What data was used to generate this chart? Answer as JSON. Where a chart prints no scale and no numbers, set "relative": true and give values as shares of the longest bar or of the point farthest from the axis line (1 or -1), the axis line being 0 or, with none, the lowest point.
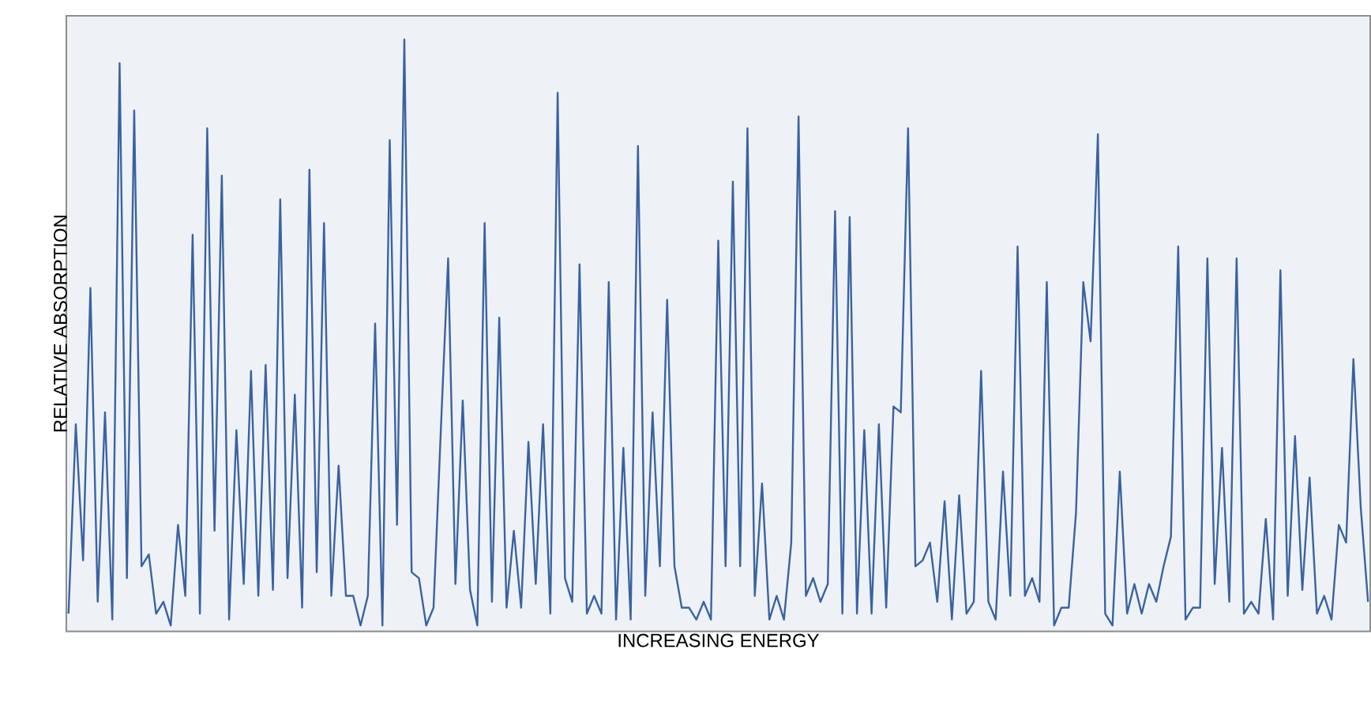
{
  "chart_data": {
    "type": "line",
    "xlabel": "INCREASING ENERGY",
    "ylabel": "RELATIVE ABSORPTION",
    "relative": true,
    "color": "#3b62a0",
    "categories": [
      null,
      null,
      null,
      null,
      null,
      null,
      null,
      null,
      null,
      null,
      null,
      null,
      null,
      null,
      null,
      null,
      null,
      null,
      null,
      null,
      null,
      null,
      null,
      null,
      null,
      null,
      null,
      null,
      null,
      null,
      null,
      null,
      null,
      null,
      null,
      null,
      null,
      null,
      null,
      null,
      null,
      null,
      null,
      null,
      null,
      null,
      null,
      null,
      null,
      null,
      null,
      null,
      null,
      null,
      null,
      null,
      null,
      null,
      null,
      null,
      null,
      null,
      null,
      null,
      null,
      null,
      null,
      null,
      null,
      null,
      null,
      null,
      null,
      null,
      null,
      null,
      null,
      null,
      null,
      null,
      null,
      null,
      null,
      null,
      null,
      null,
      null,
      null,
      null,
      null,
      null,
      null,
      null,
      null,
      null,
      null,
      null,
      null,
      null,
      null,
      null,
      null,
      null,
      null,
      null,
      null,
      null,
      null,
      null,
      null,
      null,
      null,
      null,
      null,
      null,
      null,
      null,
      null,
      null,
      null,
      null,
      null,
      null,
      null,
      null,
      null,
      null,
      null,
      null,
      null,
      null,
      null,
      null,
      null,
      null,
      null,
      null,
      null,
      null,
      null,
      null,
      null,
      null,
      null,
      null,
      null,
      null,
      null,
      null,
      null,
      null,
      null,
      null,
      null,
      null,
      null,
      null,
      null,
      null,
      null,
      null,
      null,
      null,
      null,
      null,
      null,
      null,
      null,
      null,
      null,
      null,
      null,
      null,
      null,
      null,
      null,
      null,
      null,
      null
    ],
    "values": [
      0.03,
      0.35,
      0.12,
      0.58,
      0.05,
      0.37,
      0.02,
      0.96,
      0.09,
      0.88,
      0.11,
      0.13,
      0.03,
      0.05,
      0.01,
      0.18,
      0.06,
      0.67,
      0.03,
      0.85,
      0.17,
      0.77,
      0.02,
      0.34,
      0.08,
      0.44,
      0.06,
      0.45,
      0.07,
      0.73,
      0.09,
      0.4,
      0.04,
      0.78,
      0.1,
      0.69,
      0.06,
      0.28,
      0.06,
      0.06,
      0.01,
      0.06,
      0.52,
      0.01,
      0.83,
      0.18,
      1.0,
      0.1,
      0.09,
      0.01,
      0.04,
      0.34,
      0.63,
      0.08,
      0.39,
      0.07,
      0.01,
      0.69,
      0.05,
      0.53,
      0.04,
      0.17,
      0.04,
      0.32,
      0.08,
      0.35,
      0.03,
      0.91,
      0.09,
      0.05,
      0.62,
      0.03,
      0.06,
      0.03,
      0.59,
      0.02,
      0.31,
      0.02,
      0.82,
      0.06,
      0.37,
      0.11,
      0.56,
      0.11,
      0.04,
      0.04,
      0.02,
      0.05,
      0.02,
      0.66,
      0.11,
      0.76,
      0.11,
      0.85,
      0.06,
      0.25,
      0.02,
      0.06,
      0.02,
      0.15,
      0.87,
      0.06,
      0.09,
      0.05,
      0.08,
      0.71,
      0.03,
      0.7,
      0.03,
      0.34,
      0.03,
      0.35,
      0.04,
      0.38,
      0.37,
      0.85,
      0.11,
      0.12,
      0.15,
      0.05,
      0.22,
      0.02,
      0.23,
      0.03,
      0.05,
      0.44,
      0.05,
      0.02,
      0.27,
      0.06,
      0.65,
      0.06,
      0.09,
      0.05,
      0.59,
      0.01,
      0.04,
      0.04,
      0.2,
      0.59,
      0.49,
      0.84,
      0.03,
      0.01,
      0.27,
      0.03,
      0.08,
      0.03,
      0.08,
      0.05,
      0.11,
      0.16,
      0.65,
      0.02,
      0.04,
      0.04,
      0.63,
      0.08,
      0.31,
      0.05,
      0.63,
      0.03,
      0.05,
      0.03,
      0.19,
      0.02,
      0.61,
      0.06,
      0.33,
      0.07,
      0.26,
      0.03,
      0.06,
      0.02,
      0.18,
      0.15,
      0.46,
      0.21,
      0.05
    ]
  }
}
